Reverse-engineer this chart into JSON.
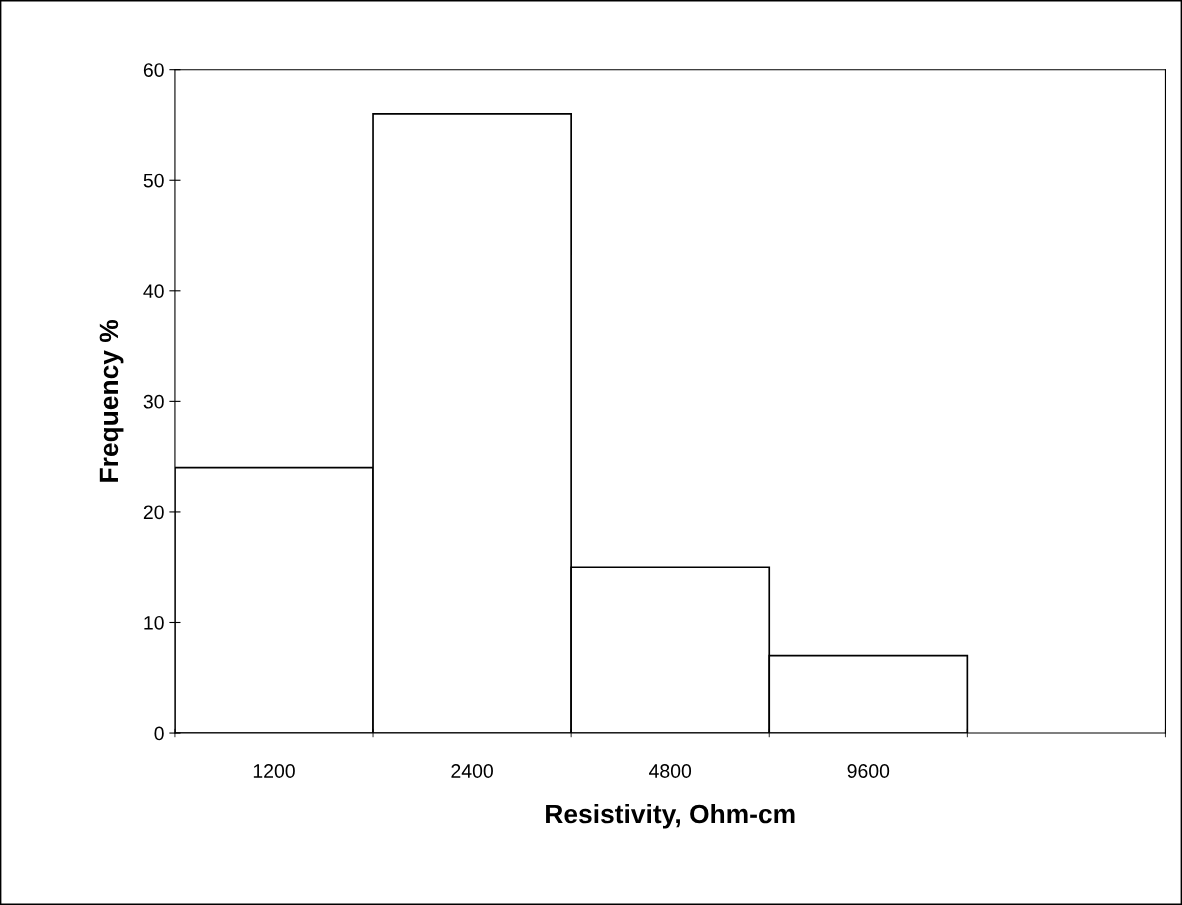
{
  "chart_data": {
    "type": "bar",
    "xlabel": "Resistivity, Ohm-cm",
    "ylabel": "Frequency %",
    "categories": [
      "1200",
      "2400",
      "4800",
      "9600",
      null
    ],
    "values": [
      24,
      56,
      15,
      7,
      null
    ],
    "color": "#ffffff",
    "ylim": [
      0,
      60
    ],
    "yticks": [
      0,
      10,
      20,
      30,
      40,
      50,
      60
    ],
    "grid": false,
    "legend": false
  }
}
